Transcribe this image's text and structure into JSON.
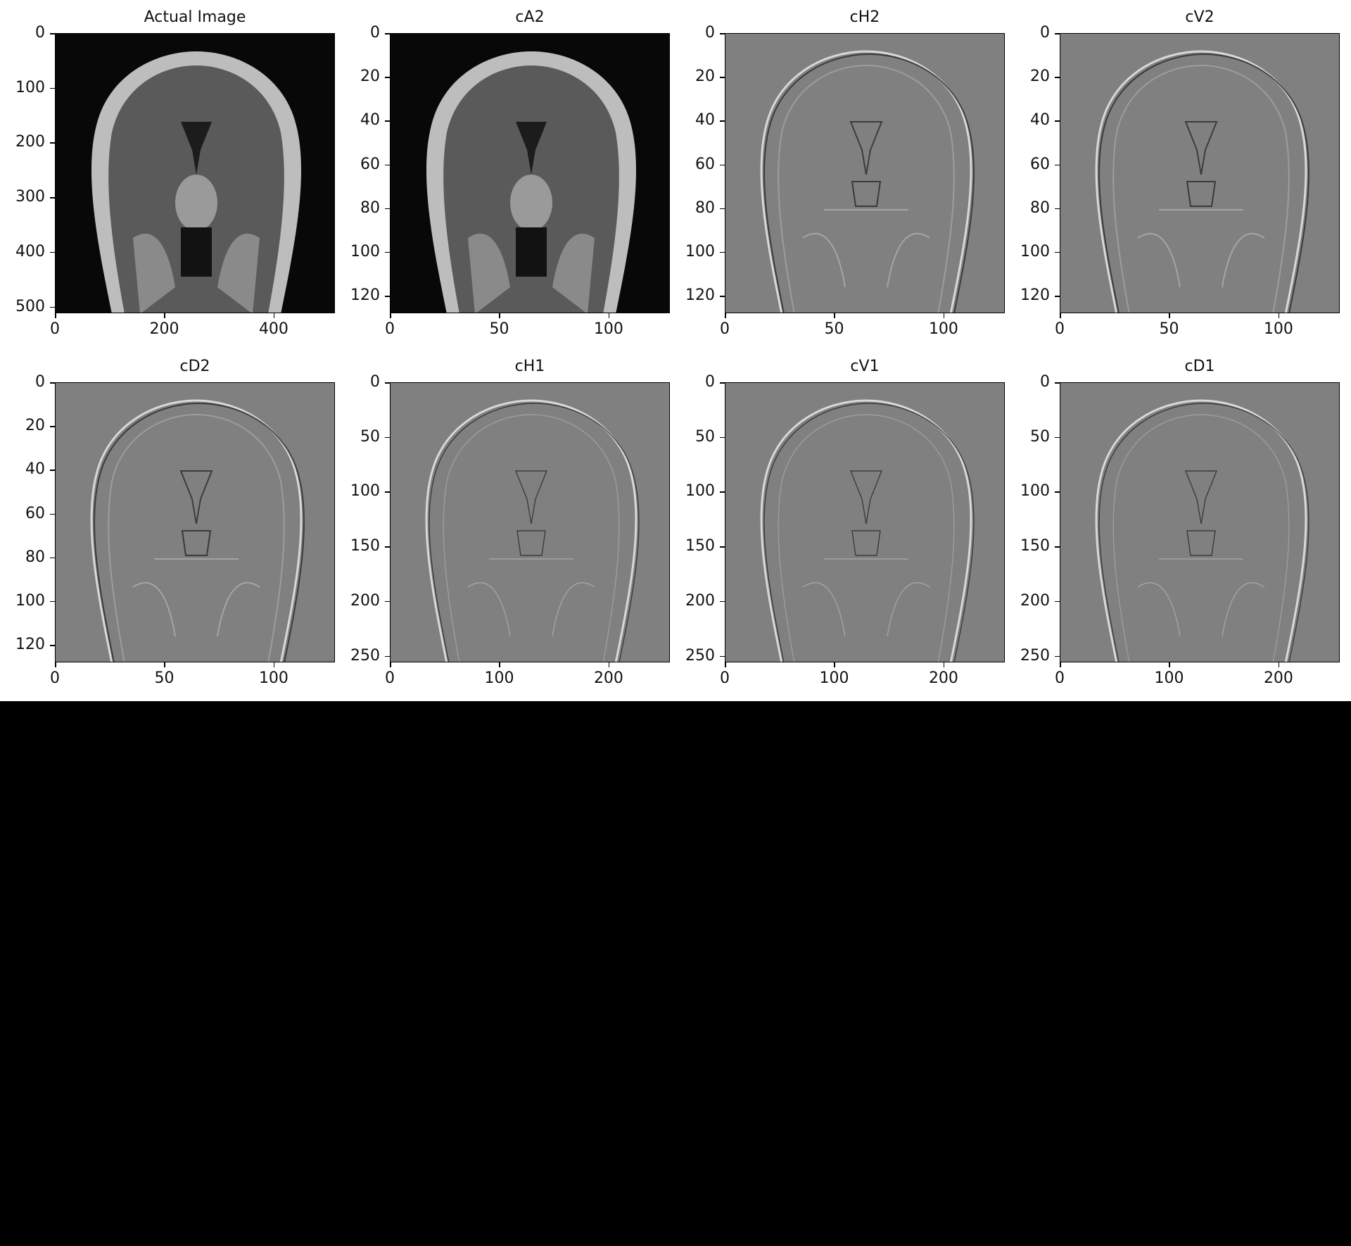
{
  "figure": {
    "background": "#ffffff",
    "panels": [
      {
        "title": "Actual Image",
        "image_style": "dark",
        "xlim": [
          0,
          512
        ],
        "ylim": [
          512,
          0
        ],
        "x_ticks": [
          "0",
          "200",
          "400"
        ],
        "x_tick_values": [
          0,
          200,
          400
        ],
        "y_ticks": [
          "0",
          "100",
          "200",
          "300",
          "400",
          "500"
        ],
        "y_tick_values": [
          0,
          100,
          200,
          300,
          400,
          500
        ]
      },
      {
        "title": "cA2",
        "image_style": "dark",
        "xlim": [
          0,
          128
        ],
        "ylim": [
          128,
          0
        ],
        "x_ticks": [
          "0",
          "50",
          "100"
        ],
        "x_tick_values": [
          0,
          50,
          100
        ],
        "y_ticks": [
          "0",
          "20",
          "40",
          "60",
          "80",
          "100",
          "120"
        ],
        "y_tick_values": [
          0,
          20,
          40,
          60,
          80,
          100,
          120
        ]
      },
      {
        "title": "cH2",
        "image_style": "edge",
        "xlim": [
          0,
          128
        ],
        "ylim": [
          128,
          0
        ],
        "x_ticks": [
          "0",
          "50",
          "100"
        ],
        "x_tick_values": [
          0,
          50,
          100
        ],
        "y_ticks": [
          "0",
          "20",
          "40",
          "60",
          "80",
          "100",
          "120"
        ],
        "y_tick_values": [
          0,
          20,
          40,
          60,
          80,
          100,
          120
        ]
      },
      {
        "title": "cV2",
        "image_style": "edge",
        "xlim": [
          0,
          128
        ],
        "ylim": [
          128,
          0
        ],
        "x_ticks": [
          "0",
          "50",
          "100"
        ],
        "x_tick_values": [
          0,
          50,
          100
        ],
        "y_ticks": [
          "0",
          "20",
          "40",
          "60",
          "80",
          "100",
          "120"
        ],
        "y_tick_values": [
          0,
          20,
          40,
          60,
          80,
          100,
          120
        ]
      },
      {
        "title": "cD2",
        "image_style": "edge",
        "xlim": [
          0,
          128
        ],
        "ylim": [
          128,
          0
        ],
        "x_ticks": [
          "0",
          "50",
          "100"
        ],
        "x_tick_values": [
          0,
          50,
          100
        ],
        "y_ticks": [
          "0",
          "20",
          "40",
          "60",
          "80",
          "100",
          "120"
        ],
        "y_tick_values": [
          0,
          20,
          40,
          60,
          80,
          100,
          120
        ]
      },
      {
        "title": "cH1",
        "image_style": "edge",
        "xlim": [
          0,
          256
        ],
        "ylim": [
          256,
          0
        ],
        "x_ticks": [
          "0",
          "100",
          "200"
        ],
        "x_tick_values": [
          0,
          100,
          200
        ],
        "y_ticks": [
          "0",
          "50",
          "100",
          "150",
          "200",
          "250"
        ],
        "y_tick_values": [
          0,
          50,
          100,
          150,
          200,
          250
        ]
      },
      {
        "title": "cV1",
        "image_style": "edge",
        "xlim": [
          0,
          256
        ],
        "ylim": [
          256,
          0
        ],
        "x_ticks": [
          "0",
          "100",
          "200"
        ],
        "x_tick_values": [
          0,
          100,
          200
        ],
        "y_ticks": [
          "0",
          "50",
          "100",
          "150",
          "200",
          "250"
        ],
        "y_tick_values": [
          0,
          50,
          100,
          150,
          200,
          250
        ]
      },
      {
        "title": "cD1",
        "image_style": "edge",
        "xlim": [
          0,
          256
        ],
        "ylim": [
          256,
          0
        ],
        "x_ticks": [
          "0",
          "100",
          "200"
        ],
        "x_tick_values": [
          0,
          100,
          200
        ],
        "y_ticks": [
          "0",
          "50",
          "100",
          "150",
          "200",
          "250"
        ],
        "y_tick_values": [
          0,
          50,
          100,
          150,
          200,
          250
        ]
      }
    ]
  },
  "colors": {
    "dark_background": "#080808",
    "edge_background": "#808080",
    "tissue": "#5a5a5a",
    "bright_edge": "#e8e8e8",
    "dark_edge": "#2a2a2a"
  }
}
